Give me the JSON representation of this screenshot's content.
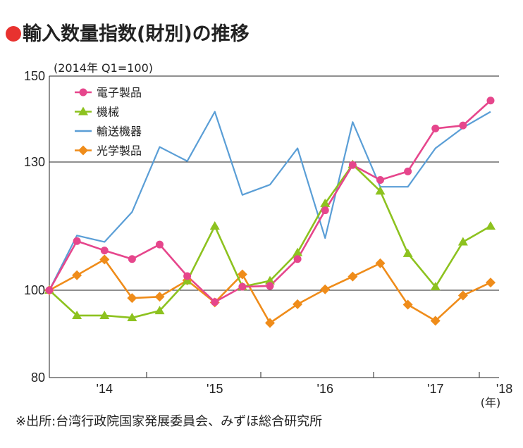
{
  "title": "輸入数量指数(財別)の推移",
  "footnote": "※出所:台湾行政院国家発展委員会、みずほ総合研究所",
  "chart_data": {
    "type": "line",
    "unit_label": "(2014年 Q1=100)",
    "y_ticks": [
      "150",
      "130",
      "100",
      "80"
    ],
    "y_tick_values": [
      150,
      130,
      100,
      80
    ],
    "ylim": [
      80,
      150
    ],
    "x_tick_labels": [
      "'14",
      "'15",
      "'16",
      "'17",
      "'18"
    ],
    "x_tick_positions": [
      2,
      6,
      10,
      14,
      16.5
    ],
    "x_end_label": "(年)",
    "grid": "horizontal",
    "legend_position": "top-left",
    "series": [
      {
        "name": "電子製品",
        "color": "#e6468c",
        "marker": "circle",
        "values": [
          100,
          111.5,
          109.3,
          107.3,
          110.7,
          103.3,
          97.3,
          100.8,
          101,
          107.3,
          118.7,
          129.3,
          125.8,
          127.8,
          137.8,
          138.5,
          144.3
        ]
      },
      {
        "name": "機械",
        "color": "#8dc21f",
        "marker": "triangle",
        "values": [
          100,
          94.2,
          94.2,
          93.7,
          95.3,
          102.2,
          115,
          100.8,
          102.2,
          108.8,
          120.3,
          129.4,
          123.2,
          108.6,
          100.8,
          111.3,
          115
        ]
      },
      {
        "name": "輸送機器",
        "color": "#5a9ed6",
        "marker": "none",
        "values": [
          100,
          112.8,
          111.3,
          118.3,
          133.5,
          130.2,
          141.7,
          122.3,
          124.7,
          133.2,
          112.2,
          139.3,
          124.2,
          124.2,
          133.2,
          138,
          141.7
        ]
      },
      {
        "name": "光学製品",
        "color": "#ef8c1a",
        "marker": "diamond",
        "values": [
          100,
          103.5,
          107.2,
          98.2,
          98.5,
          102.3,
          97.2,
          103.7,
          92.5,
          96.8,
          100.2,
          103.2,
          106.3,
          96.7,
          93,
          98.8,
          101.8
        ]
      }
    ]
  }
}
